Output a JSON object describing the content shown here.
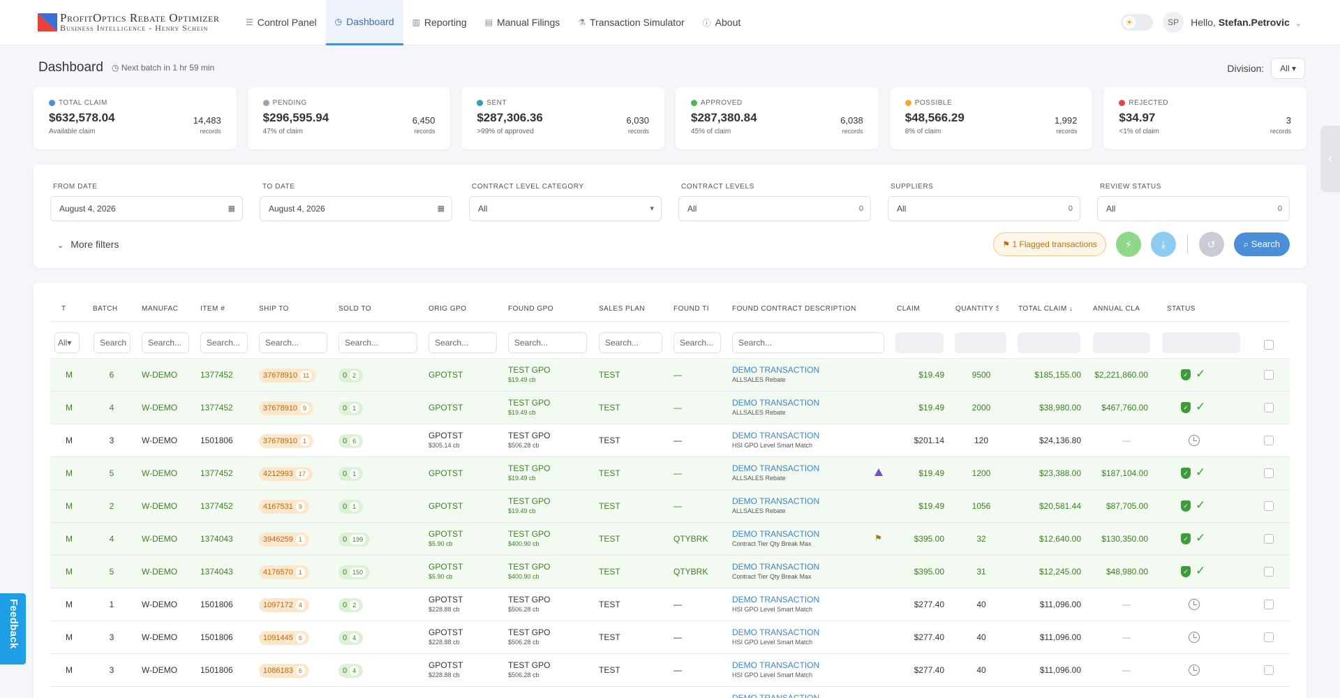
{
  "app": {
    "brand_line1": "ProfitOptics Rebate Optimizer",
    "brand_line2": "Business Intelligence - Henry Schein"
  },
  "nav": [
    {
      "label": "Control Panel",
      "icon": "sliders-icon",
      "active": false
    },
    {
      "label": "Dashboard",
      "icon": "dashboard-icon",
      "active": true
    },
    {
      "label": "Reporting",
      "icon": "chart-icon",
      "active": false
    },
    {
      "label": "Manual Filings",
      "icon": "file-icon",
      "active": false
    },
    {
      "label": "Transaction Simulator",
      "icon": "flask-icon",
      "active": false
    },
    {
      "label": "About",
      "icon": "info-icon",
      "active": false
    }
  ],
  "user": {
    "initials": "SP",
    "greeting": "Hello,",
    "name": "Stefan.Petrovic"
  },
  "page": {
    "title": "Dashboard",
    "batch": "Next batch in 1 hr 59 min",
    "division_label": "Division:",
    "division_value": "All"
  },
  "cards": [
    {
      "label": "TOTAL CLAIM",
      "amount": "$632,578.04",
      "sub": "Available claim",
      "records": "14,483",
      "records_unit": "records",
      "color": "#4a8fd8"
    },
    {
      "label": "PENDING",
      "amount": "$296,595.94",
      "sub": "47% of claim",
      "records": "6,450",
      "records_unit": "records",
      "color": "#9aa3b0"
    },
    {
      "label": "SENT",
      "amount": "$287,306.36",
      "sub": ">99% of approved",
      "records": "6,030",
      "records_unit": "records",
      "color": "#29a3b8"
    },
    {
      "label": "APPROVED",
      "amount": "$287,380.84",
      "sub": "45% of claim",
      "records": "6,038",
      "records_unit": "records",
      "color": "#4cb84a"
    },
    {
      "label": "POSSIBLE",
      "amount": "$48,566.29",
      "sub": "8% of claim",
      "records": "1,992",
      "records_unit": "records",
      "color": "#f0a830"
    },
    {
      "label": "REJECTED",
      "amount": "$34.97",
      "sub": "<1% of claim",
      "records": "3",
      "records_unit": "records",
      "color": "#e04848"
    }
  ],
  "filters": {
    "from_label": "FROM DATE",
    "from_value": "August 4, 2026",
    "to_label": "TO DATE",
    "to_value": "August 4, 2026",
    "clc_label": "CONTRACT LEVEL CATEGORY",
    "clc_value": "All",
    "cl_label": "CONTRACT LEVELS",
    "cl_value": "All",
    "cl_count": "0",
    "sup_label": "SUPPLIERS",
    "sup_value": "All",
    "sup_count": "0",
    "rs_label": "REVIEW STATUS",
    "rs_value": "All",
    "rs_count": "0",
    "more": "More filters",
    "flagged": "1 Flagged transactions",
    "search": "Search"
  },
  "table": {
    "headers": [
      "T",
      "BATCH",
      "MANUFAC",
      "ITEM #",
      "SHIP TO",
      "SOLD TO",
      "ORIG GPO",
      "FOUND GPO",
      "SALES PLAN",
      "FOUND TI",
      "FOUND CONTRACT DESCRIPTION",
      "CLAIM",
      "QUANTITY S",
      "TOTAL CLAIM ↓",
      "ANNUAL CLA",
      "STATUS"
    ],
    "search_placeholder": "Search...",
    "search_short": "Search",
    "t_filter": "All",
    "rows": [
      {
        "ok": true,
        "t": "M",
        "batch": "6",
        "mfr": "W-DEMO",
        "item": "1377452",
        "ship": "37678910",
        "ship_n": "11",
        "sold": "0",
        "sold_n": "2",
        "orig": "GPOTST",
        "orig_cb": "",
        "found": "TEST GPO",
        "found_cb": "$19.49 cb",
        "plan": "TEST",
        "tier": "—",
        "desc": "DEMO TRANSACTION",
        "desc_sub": "ALLSALES Rebate",
        "alert": "",
        "claim": "$19.49",
        "qty": "9500",
        "total": "$185,155.00",
        "annual": "$2,221,860.00",
        "status": "approved"
      },
      {
        "ok": true,
        "t": "M",
        "batch": "4",
        "mfr": "W-DEMO",
        "item": "1377452",
        "ship": "37678910",
        "ship_n": "9",
        "sold": "0",
        "sold_n": "1",
        "orig": "GPOTST",
        "orig_cb": "",
        "found": "TEST GPO",
        "found_cb": "$19.49 cb",
        "plan": "TEST",
        "tier": "—",
        "desc": "DEMO TRANSACTION",
        "desc_sub": "ALLSALES Rebate",
        "alert": "",
        "claim": "$19.49",
        "qty": "2000",
        "total": "$38,980.00",
        "annual": "$467,760.00",
        "status": "approved"
      },
      {
        "ok": false,
        "t": "M",
        "batch": "3",
        "mfr": "W-DEMO",
        "item": "1501806",
        "ship": "37678910",
        "ship_n": "1",
        "sold": "0",
        "sold_n": "6",
        "orig": "GPOTST",
        "orig_cb": "$305.14 cb",
        "found": "TEST GPO",
        "found_cb": "$506.28 cb",
        "plan": "TEST",
        "tier": "—",
        "desc": "DEMO TRANSACTION",
        "desc_sub": "HSI GPO Level Smart Match",
        "alert": "",
        "claim": "$201.14",
        "qty": "120",
        "total": "$24,136.80",
        "annual": "—",
        "status": "pending"
      },
      {
        "ok": true,
        "t": "M",
        "batch": "5",
        "mfr": "W-DEMO",
        "item": "1377452",
        "ship": "4212993",
        "ship_n": "17",
        "sold": "0",
        "sold_n": "1",
        "orig": "GPOTST",
        "orig_cb": "",
        "found": "TEST GPO",
        "found_cb": "$19.49 cb",
        "plan": "TEST",
        "tier": "—",
        "desc": "DEMO TRANSACTION",
        "desc_sub": "ALLSALES Rebate",
        "alert": "warn",
        "claim": "$19.49",
        "qty": "1200",
        "total": "$23,388.00",
        "annual": "$187,104.00",
        "status": "approved"
      },
      {
        "ok": true,
        "t": "M",
        "batch": "2",
        "mfr": "W-DEMO",
        "item": "1377452",
        "ship": "4167531",
        "ship_n": "9",
        "sold": "0",
        "sold_n": "1",
        "orig": "GPOTST",
        "orig_cb": "",
        "found": "TEST GPO",
        "found_cb": "$19.49 cb",
        "plan": "TEST",
        "tier": "—",
        "desc": "DEMO TRANSACTION",
        "desc_sub": "ALLSALES Rebate",
        "alert": "",
        "claim": "$19.49",
        "qty": "1056",
        "total": "$20,581.44",
        "annual": "$87,705.00",
        "status": "approved"
      },
      {
        "ok": true,
        "t": "M",
        "batch": "4",
        "mfr": "W-DEMO",
        "item": "1374043",
        "ship": "3946259",
        "ship_n": "1",
        "sold": "0",
        "sold_n": "199",
        "orig": "GPOTST",
        "orig_cb": "$5.90 cb",
        "found": "TEST GPO",
        "found_cb": "$400.90 cb",
        "plan": "TEST",
        "tier": "QTYBRK",
        "desc": "DEMO TRANSACTION",
        "desc_sub": "Contract Tier Qty Break Max",
        "alert": "flag",
        "claim": "$395.00",
        "qty": "32",
        "total": "$12,640.00",
        "annual": "$130,350.00",
        "status": "approved"
      },
      {
        "ok": true,
        "t": "M",
        "batch": "5",
        "mfr": "W-DEMO",
        "item": "1374043",
        "ship": "4176570",
        "ship_n": "1",
        "sold": "0",
        "sold_n": "150",
        "orig": "GPOTST",
        "orig_cb": "$5.90 cb",
        "found": "TEST GPO",
        "found_cb": "$400.90 cb",
        "plan": "TEST",
        "tier": "QTYBRK",
        "desc": "DEMO TRANSACTION",
        "desc_sub": "Contract Tier Qty Break Max",
        "alert": "",
        "claim": "$395.00",
        "qty": "31",
        "total": "$12,245.00",
        "annual": "$48,980.00",
        "status": "approved"
      },
      {
        "ok": false,
        "t": "M",
        "batch": "1",
        "mfr": "W-DEMO",
        "item": "1501806",
        "ship": "1097172",
        "ship_n": "4",
        "sold": "0",
        "sold_n": "2",
        "orig": "GPOTST",
        "orig_cb": "$228.88 cb",
        "found": "TEST GPO",
        "found_cb": "$506.28 cb",
        "plan": "TEST",
        "tier": "—",
        "desc": "DEMO TRANSACTION",
        "desc_sub": "HSI GPO Level Smart Match",
        "alert": "",
        "claim": "$277.40",
        "qty": "40",
        "total": "$11,096.00",
        "annual": "—",
        "status": "pending"
      },
      {
        "ok": false,
        "t": "M",
        "batch": "3",
        "mfr": "W-DEMO",
        "item": "1501806",
        "ship": "1091445",
        "ship_n": "6",
        "sold": "0",
        "sold_n": "4",
        "orig": "GPOTST",
        "orig_cb": "$228.88 cb",
        "found": "TEST GPO",
        "found_cb": "$506.28 cb",
        "plan": "TEST",
        "tier": "—",
        "desc": "DEMO TRANSACTION",
        "desc_sub": "HSI GPO Level Smart Match",
        "alert": "",
        "claim": "$277.40",
        "qty": "40",
        "total": "$11,096.00",
        "annual": "—",
        "status": "pending"
      },
      {
        "ok": false,
        "t": "M",
        "batch": "3",
        "mfr": "W-DEMO",
        "item": "1501806",
        "ship": "1086183",
        "ship_n": "6",
        "sold": "0",
        "sold_n": "4",
        "orig": "GPOTST",
        "orig_cb": "$228.88 cb",
        "found": "TEST GPO",
        "found_cb": "$506.28 cb",
        "plan": "TEST",
        "tier": "—",
        "desc": "DEMO TRANSACTION",
        "desc_sub": "HSI GPO Level Smart Match",
        "alert": "",
        "claim": "$277.40",
        "qty": "40",
        "total": "$11,096.00",
        "annual": "—",
        "status": "pending"
      },
      {
        "ok": false,
        "t": "",
        "batch": "",
        "mfr": "",
        "item": "",
        "ship": "",
        "ship_n": "",
        "sold": "",
        "sold_n": "",
        "orig": "GPOTST",
        "orig_cb": "",
        "found": "TEST GPO",
        "found_cb": "",
        "plan": "",
        "tier": "",
        "desc": "DEMO TRANSACTION",
        "desc_sub": "",
        "alert": "",
        "claim": "",
        "qty": "",
        "total": "",
        "annual": "",
        "status": ""
      }
    ]
  },
  "feedback": "Feedback"
}
